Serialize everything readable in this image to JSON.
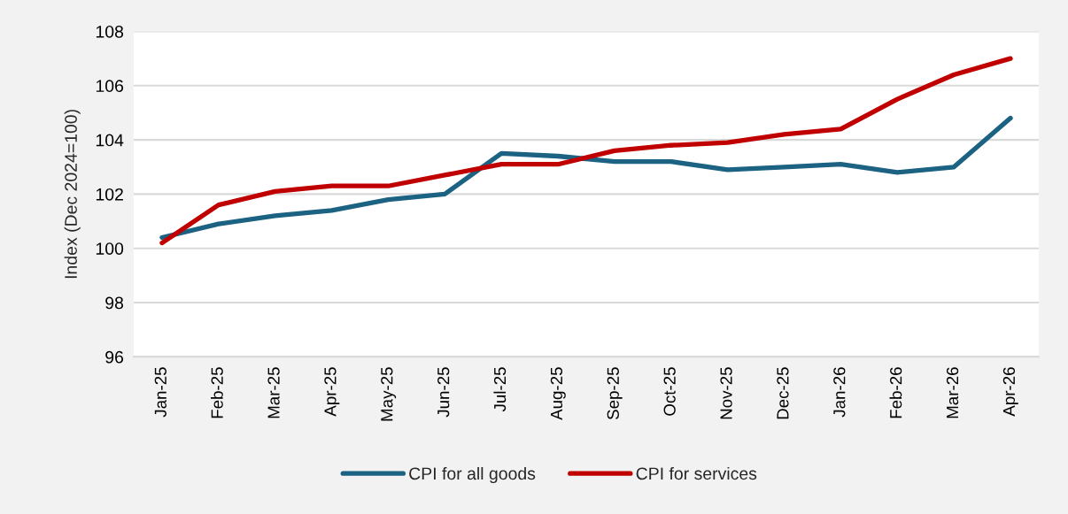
{
  "chart_data": {
    "type": "line",
    "ylabel": "Index (Dec 2024=100)",
    "categories": [
      "Jan-25",
      "Feb-25",
      "Mar-25",
      "Apr-25",
      "May-25",
      "Jun-25",
      "Jul-25",
      "Aug-25",
      "Sep-25",
      "Oct-25",
      "Nov-25",
      "Dec-25",
      "Jan-26",
      "Feb-26",
      "Mar-26",
      "Apr-26"
    ],
    "series": [
      {
        "name": "CPI for all goods",
        "color": "#1b6283",
        "values": [
          100.4,
          100.9,
          101.2,
          101.4,
          101.8,
          102.0,
          103.5,
          103.4,
          103.2,
          103.2,
          102.9,
          103.0,
          103.1,
          102.8,
          103.0,
          104.8
        ]
      },
      {
        "name": "CPI for services",
        "color": "#c00000",
        "values": [
          100.2,
          101.6,
          102.1,
          102.3,
          102.3,
          102.7,
          103.1,
          103.1,
          103.6,
          103.8,
          103.9,
          104.2,
          104.4,
          105.5,
          106.4,
          107.0
        ]
      }
    ],
    "ylim": [
      96,
      108
    ],
    "yticks": [
      96,
      98,
      100,
      102,
      104,
      106,
      108
    ],
    "grid": "y",
    "legend": "bottom",
    "line_style": "solid"
  }
}
